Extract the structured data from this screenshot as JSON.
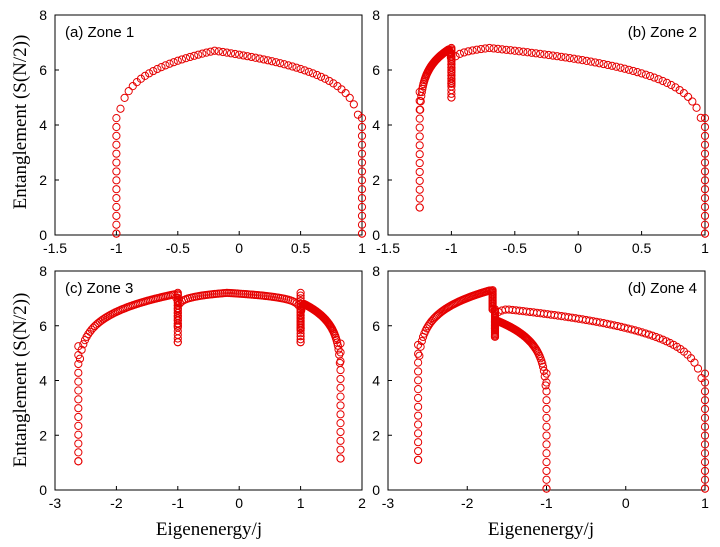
{
  "figure": {
    "ylabel": "Entanglement (S(N/2))",
    "xlabel": "Eigenenergy/j"
  },
  "chart_data": [
    {
      "type": "scatter",
      "title": "(a) Zone 1",
      "xlim": [
        -1.5,
        1
      ],
      "ylim": [
        0,
        8
      ],
      "xticks": [
        "-1.5",
        "-1",
        "-0.5",
        "0",
        "0.5",
        "1"
      ],
      "yticks": [
        "0",
        "2",
        "4",
        "6",
        "8"
      ],
      "marker_color": "#e60000",
      "segments": [
        {
          "x_start": -1.0,
          "x_end": 1.0,
          "y_peak": 6.7,
          "x_peak": -0.2,
          "y_edge_left": 0.05,
          "y_edge_right": 0.05
        }
      ]
    },
    {
      "type": "scatter",
      "title": "(b) Zone 2",
      "xlim": [
        -1.5,
        1
      ],
      "ylim": [
        0,
        8
      ],
      "xticks": [
        "-1.5",
        "-1",
        "-0.5",
        "0",
        "0.5",
        "1"
      ],
      "yticks": [
        "0",
        "2",
        "4",
        "6",
        "8"
      ],
      "marker_color": "#e60000",
      "segments": [
        {
          "x_start": -1.25,
          "x_end": -1.0,
          "y_peak": 6.75,
          "x_peak": -1.02,
          "y_edge_left": 1.0,
          "y_edge_right": 5.0
        },
        {
          "x_start": -1.0,
          "x_end": 1.0,
          "y_peak": 6.8,
          "x_peak": -0.7,
          "y_edge_left": 5.5,
          "y_edge_right": 0.05
        }
      ]
    },
    {
      "type": "scatter",
      "title": "(c) Zone 3",
      "xlim": [
        -3,
        2
      ],
      "ylim": [
        0,
        8
      ],
      "xticks": [
        "-3",
        "-2",
        "-1",
        "0",
        "1",
        "2"
      ],
      "yticks": [
        "0",
        "2",
        "4",
        "6",
        "8"
      ],
      "marker_color": "#e60000",
      "segments": [
        {
          "x_start": -2.62,
          "x_end": -1.0,
          "y_peak": 7.15,
          "x_peak": -1.05,
          "y_edge_left": 1.05,
          "y_edge_right": 5.4
        },
        {
          "x_start": -1.0,
          "x_end": 1.0,
          "y_peak": 7.2,
          "x_peak": -0.2,
          "y_edge_left": 6.0,
          "y_edge_right": 5.9
        },
        {
          "x_start": 1.0,
          "x_end": 1.65,
          "y_peak": 6.8,
          "x_peak": 1.05,
          "y_edge_left": 5.4,
          "y_edge_right": 1.15
        }
      ]
    },
    {
      "type": "scatter",
      "title": "(d) Zone 4",
      "xlim": [
        -3,
        1
      ],
      "ylim": [
        0,
        8
      ],
      "xticks": [
        "-3",
        "-2",
        "-1",
        "0",
        "1"
      ],
      "yticks": [
        "0",
        "2",
        "4",
        "6",
        "8"
      ],
      "marker_color": "#e60000",
      "segments": [
        {
          "x_start": -2.62,
          "x_end": -1.68,
          "y_peak": 7.3,
          "x_peak": -1.7,
          "y_edge_left": 1.1,
          "y_edge_right": 6.6
        },
        {
          "x_start": -1.65,
          "x_end": -1.0,
          "y_peak": 6.2,
          "x_peak": -1.64,
          "y_edge_left": 5.6,
          "y_edge_right": 0.05
        },
        {
          "x_start": -1.65,
          "x_end": 1.0,
          "y_peak": 6.6,
          "x_peak": -1.5,
          "y_edge_left": 5.9,
          "y_edge_right": 0.05
        }
      ]
    }
  ]
}
